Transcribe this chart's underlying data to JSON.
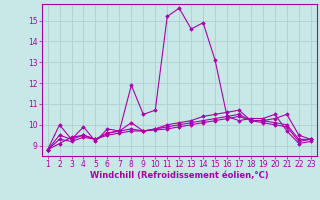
{
  "xlabel": "Windchill (Refroidissement éolien,°C)",
  "x": [
    1,
    2,
    3,
    4,
    5,
    6,
    7,
    8,
    9,
    10,
    11,
    12,
    13,
    14,
    15,
    16,
    17,
    18,
    19,
    20,
    21,
    22,
    23
  ],
  "series": [
    [
      8.8,
      9.1,
      9.4,
      9.5,
      9.3,
      9.6,
      9.7,
      11.9,
      10.5,
      10.7,
      15.2,
      15.6,
      14.6,
      14.9,
      13.1,
      10.4,
      10.2,
      10.3,
      10.3,
      10.5,
      9.7,
      9.1,
      9.2
    ],
    [
      8.8,
      10.0,
      9.3,
      9.9,
      9.2,
      9.8,
      9.7,
      10.1,
      9.7,
      9.8,
      10.0,
      10.1,
      10.2,
      10.4,
      10.5,
      10.6,
      10.7,
      10.2,
      10.2,
      10.3,
      10.5,
      9.5,
      9.3
    ],
    [
      8.8,
      9.5,
      9.3,
      9.5,
      9.3,
      9.6,
      9.7,
      9.8,
      9.7,
      9.8,
      9.9,
      10.0,
      10.1,
      10.2,
      10.3,
      10.4,
      10.5,
      10.2,
      10.2,
      10.1,
      10.0,
      9.3,
      9.3
    ],
    [
      8.8,
      9.3,
      9.2,
      9.4,
      9.3,
      9.5,
      9.6,
      9.7,
      9.7,
      9.75,
      9.8,
      9.9,
      10.0,
      10.1,
      10.2,
      10.3,
      10.4,
      10.2,
      10.1,
      10.0,
      9.9,
      9.2,
      9.3
    ]
  ],
  "line_color": "#aa00aa",
  "marker": "D",
  "marker_size": 1.8,
  "bg_color": "#c8e8e8",
  "grid_color": "#b0d0d0",
  "axis_color": "#aa00aa",
  "text_color": "#aa00aa",
  "ylim": [
    8.5,
    15.8
  ],
  "yticks": [
    9,
    10,
    11,
    12,
    13,
    14,
    15
  ],
  "xticks": [
    1,
    2,
    3,
    4,
    5,
    6,
    7,
    8,
    9,
    10,
    11,
    12,
    13,
    14,
    15,
    16,
    17,
    18,
    19,
    20,
    21,
    22,
    23
  ],
  "xlabel_fontsize": 6.0,
  "tick_fontsize": 5.5,
  "linewidth": 0.8
}
